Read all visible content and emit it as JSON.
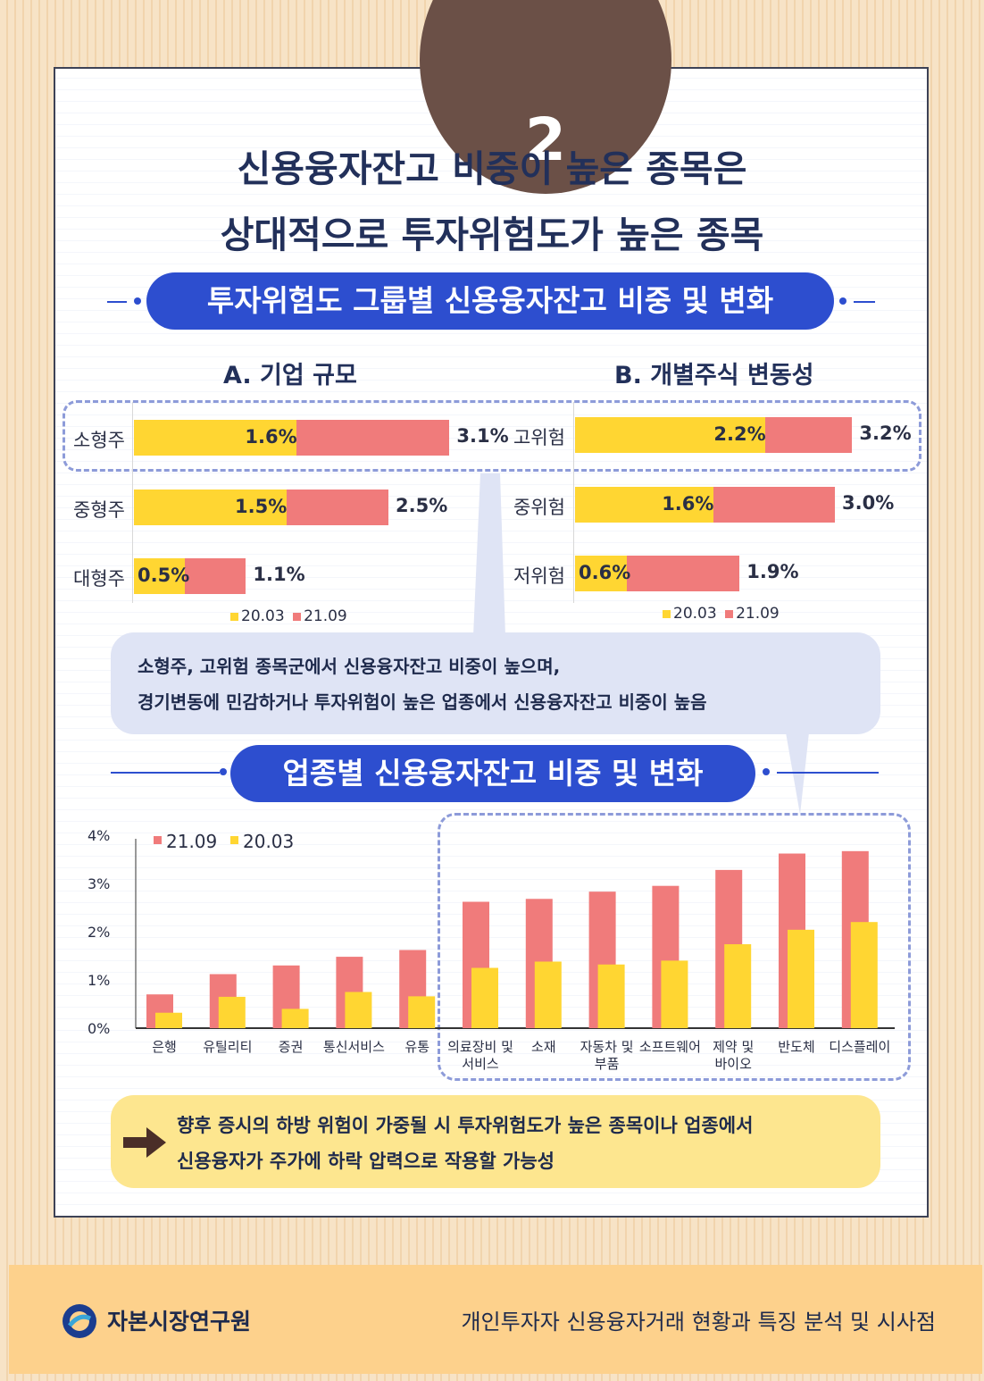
{
  "badge": {
    "number": "2"
  },
  "title": {
    "line1": "신용융자잔고 비중이 높은 종목은",
    "line2": "상대적으로 투자위험도가 높은 종목"
  },
  "section1": {
    "label": "투자위험도 그룹별 신용융자잔고 비중 및 변화"
  },
  "section2": {
    "label": "업종별 신용융자잔고 비중 및 변화"
  },
  "colors": {
    "accent": "#2d4ecf",
    "yellow": "#ffd632",
    "red": "#f07b7b",
    "badge": "#6b5047"
  },
  "insight": {
    "line1": "소형주, 고위험 종목군에서 신용융자잔고 비중이 높으며,",
    "line2": "경기변동에 민감하거나 투자위험이 높은 업종에서 신용융자잔고 비중이 높음"
  },
  "conclusion": {
    "icon": "arrow-right-icon",
    "line1": "향후 증시의 하방 위험이 가중될 시 투자위험도가 높은 종목이나 업종에서",
    "line2": "신용융자가 주가에 하락 압력으로 작용할 가능성"
  },
  "footer": {
    "org": "자본시장연구원",
    "report": "개인투자자 신용융자거래 현황과 특징 분석 및 시사점"
  },
  "chart_data": [
    {
      "type": "bar",
      "title": "A. 기업 규모",
      "orientation": "horizontal",
      "categories": [
        "소형주",
        "중형주",
        "대형주"
      ],
      "series": [
        {
          "name": "20.03",
          "values": [
            1.6,
            1.5,
            0.5
          ],
          "labels": [
            "1.6%",
            "1.5%",
            "0.5%"
          ]
        },
        {
          "name": "21.09",
          "values": [
            3.1,
            2.5,
            1.1
          ],
          "labels": [
            "3.1%",
            "2.5%",
            "1.1%"
          ]
        }
      ],
      "legend": [
        "20.03",
        "21.09"
      ]
    },
    {
      "type": "bar",
      "title": "B. 개별주식 변동성",
      "orientation": "horizontal",
      "categories": [
        "고위험",
        "중위험",
        "저위험"
      ],
      "series": [
        {
          "name": "20.03",
          "values": [
            2.2,
            1.6,
            0.6
          ],
          "labels": [
            "2.2%",
            "1.6%",
            "0.6%"
          ]
        },
        {
          "name": "21.09",
          "values": [
            3.2,
            3.0,
            1.9
          ],
          "labels": [
            "3.2%",
            "3.0%",
            "1.9%"
          ]
        }
      ],
      "legend": [
        "20.03",
        "21.09"
      ]
    },
    {
      "type": "bar",
      "title": "업종별 신용융자잔고 비중 및 변화",
      "categories": [
        "은행",
        "유틸리티",
        "증권",
        "통신서비스",
        "유통",
        "의료장비 및 서비스",
        "소재",
        "자동차 및 부품",
        "소프트웨어",
        "제약 및 바이오",
        "반도체",
        "디스플레이"
      ],
      "category_lines": [
        [
          "은행"
        ],
        [
          "유틸리티"
        ],
        [
          "증권"
        ],
        [
          "통신서비스"
        ],
        [
          "유통"
        ],
        [
          "의료장비 및",
          "서비스"
        ],
        [
          "소재"
        ],
        [
          "자동차 및",
          "부품"
        ],
        [
          "소프트웨어"
        ],
        [
          "제약 및",
          "바이오"
        ],
        [
          "반도체"
        ],
        [
          "디스플레이"
        ]
      ],
      "series": [
        {
          "name": "21.09",
          "values": [
            0.7,
            1.12,
            1.3,
            1.48,
            1.62,
            2.62,
            2.68,
            2.83,
            2.95,
            3.28,
            3.62,
            3.67
          ]
        },
        {
          "name": "20.03",
          "values": [
            0.32,
            0.65,
            0.4,
            0.75,
            0.66,
            1.25,
            1.38,
            1.32,
            1.4,
            1.74,
            2.04,
            2.2
          ]
        }
      ],
      "y_ticks": [
        "0%",
        "1%",
        "2%",
        "3%",
        "4%"
      ],
      "ylim": [
        0,
        4
      ],
      "legend": [
        "21.09",
        "20.03"
      ]
    }
  ]
}
